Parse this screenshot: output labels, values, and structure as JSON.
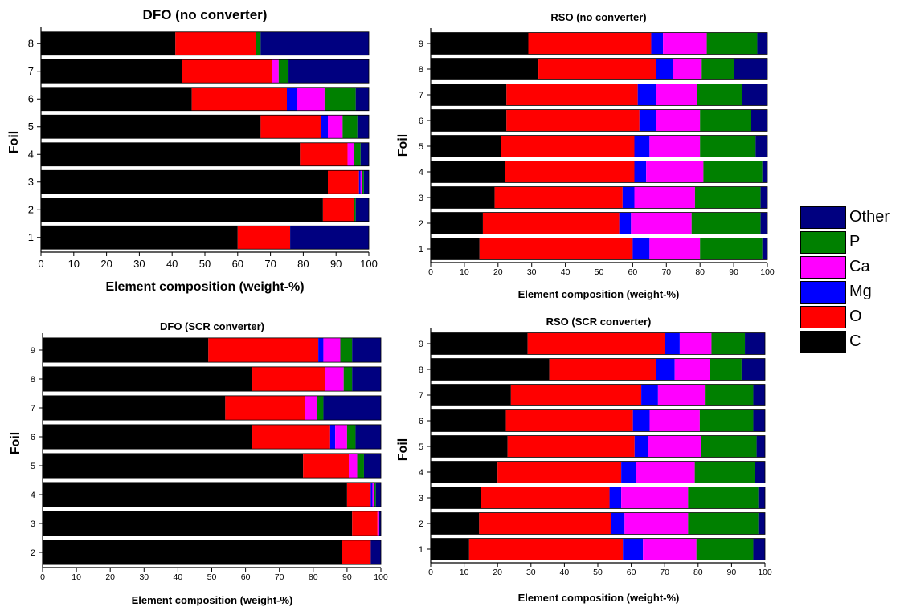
{
  "colors": {
    "C": "#000000",
    "O": "#ff0000",
    "Mg": "#0000ff",
    "Ca": "#ff00ff",
    "P": "#008000",
    "Other": "#000080"
  },
  "legend": {
    "items": [
      {
        "key": "Other",
        "label": "Other"
      },
      {
        "key": "P",
        "label": "P"
      },
      {
        "key": "Ca",
        "label": "Ca"
      },
      {
        "key": "Mg",
        "label": "Mg"
      },
      {
        "key": "O",
        "label": "O"
      },
      {
        "key": "C",
        "label": "C"
      }
    ]
  },
  "chart_data": [
    {
      "type": "bar",
      "orientation": "horizontal",
      "stacked": true,
      "title": "DFO (no converter)",
      "xlabel": "Element composition (weight-%)",
      "ylabel": "Foil",
      "xlim": [
        0,
        100
      ],
      "xticks": [
        "0",
        "10",
        "20",
        "30",
        "40",
        "50",
        "60",
        "70",
        "80",
        "90",
        "100"
      ],
      "categories": [
        "1",
        "2",
        "3",
        "4",
        "5",
        "6",
        "7",
        "8"
      ],
      "series": [
        {
          "name": "C",
          "values": [
            60,
            86,
            87.5,
            79,
            67,
            46,
            43,
            41
          ]
        },
        {
          "name": "O",
          "values": [
            16,
            9.5,
            9.5,
            14.5,
            18.5,
            29,
            27.5,
            24.5
          ]
        },
        {
          "name": "Mg",
          "values": [
            0,
            0,
            0.5,
            0,
            2,
            3,
            0,
            0
          ]
        },
        {
          "name": "Ca",
          "values": [
            0,
            0,
            0.5,
            2,
            4.5,
            8.5,
            2,
            0
          ]
        },
        {
          "name": "P",
          "values": [
            0,
            0.5,
            0.5,
            2,
            4.5,
            9.5,
            3,
            1.5
          ]
        },
        {
          "name": "Other",
          "values": [
            24,
            4,
            1.5,
            2.5,
            3.5,
            4,
            24.5,
            33
          ]
        }
      ]
    },
    {
      "type": "bar",
      "orientation": "horizontal",
      "stacked": true,
      "title": "RSO (no converter)",
      "xlabel": "Element composition (weight-%)",
      "ylabel": "Foil",
      "xlim": [
        0,
        100
      ],
      "xticks": [
        "0",
        "10",
        "20",
        "30",
        "40",
        "50",
        "60",
        "70",
        "80",
        "90",
        "100"
      ],
      "categories": [
        "1",
        "2",
        "3",
        "4",
        "5",
        "6",
        "7",
        "8",
        "9"
      ],
      "series": [
        {
          "name": "C",
          "values": [
            14.5,
            15.5,
            19,
            22,
            21,
            22.5,
            22.5,
            32,
            29
          ]
        },
        {
          "name": "O",
          "values": [
            45.5,
            40.5,
            38,
            38.5,
            39.5,
            39.5,
            39,
            35,
            36.5
          ]
        },
        {
          "name": "Mg",
          "values": [
            5,
            3.5,
            3.5,
            3.5,
            4.5,
            5,
            5.5,
            5,
            3.5
          ]
        },
        {
          "name": "Ca",
          "values": [
            15,
            18,
            18,
            17,
            15,
            13,
            12,
            8.5,
            13
          ]
        },
        {
          "name": "P",
          "values": [
            18.5,
            20.5,
            19.5,
            17.5,
            16.5,
            15,
            13.5,
            9.5,
            15
          ]
        },
        {
          "name": "Other",
          "values": [
            1.5,
            2,
            2,
            1.5,
            3.5,
            5,
            7.5,
            10,
            3
          ]
        }
      ]
    },
    {
      "type": "bar",
      "orientation": "horizontal",
      "stacked": true,
      "title": "DFO (SCR converter)",
      "xlabel": "Element composition (weight-%)",
      "ylabel": "Foil",
      "xlim": [
        0,
        100
      ],
      "xticks": [
        "0",
        "10",
        "20",
        "30",
        "40",
        "50",
        "60",
        "70",
        "80",
        "90",
        "100"
      ],
      "categories": [
        "2",
        "3",
        "4",
        "5",
        "6",
        "7",
        "8",
        "9"
      ],
      "series": [
        {
          "name": "C",
          "values": [
            88.5,
            91.5,
            90,
            77,
            62,
            54,
            62,
            49
          ]
        },
        {
          "name": "O",
          "values": [
            8.5,
            7.5,
            7,
            13.5,
            23,
            23.5,
            21.5,
            32.5
          ]
        },
        {
          "name": "Mg",
          "values": [
            0,
            0,
            0.5,
            0,
            1.5,
            0,
            0,
            1.5
          ]
        },
        {
          "name": "Ca",
          "values": [
            0,
            0.5,
            0.5,
            2.5,
            3.5,
            3.5,
            5.5,
            5
          ]
        },
        {
          "name": "P",
          "values": [
            0,
            0,
            0.5,
            2,
            2.5,
            2,
            2.5,
            3.5
          ]
        },
        {
          "name": "Other",
          "values": [
            3,
            0.5,
            1.5,
            5,
            7.5,
            17,
            8.5,
            8.5
          ]
        }
      ]
    },
    {
      "type": "bar",
      "orientation": "horizontal",
      "stacked": true,
      "title": "RSO (SCR converter)",
      "xlabel": "Element composition (weight-%)",
      "ylabel": "Foil",
      "xlim": [
        0,
        100
      ],
      "xticks": [
        "0",
        "10",
        "20",
        "30",
        "40",
        "50",
        "60",
        "70",
        "80",
        "90",
        "100"
      ],
      "categories": [
        "1",
        "2",
        "3",
        "4",
        "5",
        "6",
        "7",
        "8",
        "9"
      ],
      "series": [
        {
          "name": "C",
          "values": [
            11.5,
            14.5,
            15,
            20,
            23,
            22.5,
            24,
            35.5,
            29
          ]
        },
        {
          "name": "O",
          "values": [
            46,
            39.5,
            38.5,
            37,
            38,
            38,
            39,
            32,
            41
          ]
        },
        {
          "name": "Mg",
          "values": [
            6,
            4,
            3.5,
            4.5,
            4,
            5,
            5,
            5.5,
            4.5
          ]
        },
        {
          "name": "Ca",
          "values": [
            16,
            19,
            20,
            17.5,
            16,
            15,
            14,
            10.5,
            9.5
          ]
        },
        {
          "name": "P",
          "values": [
            17,
            21,
            21,
            18,
            16.5,
            16,
            14.5,
            9.5,
            10
          ]
        },
        {
          "name": "Other",
          "values": [
            3.5,
            2,
            2,
            3,
            2.5,
            3.5,
            3.5,
            7,
            6
          ]
        }
      ]
    }
  ]
}
